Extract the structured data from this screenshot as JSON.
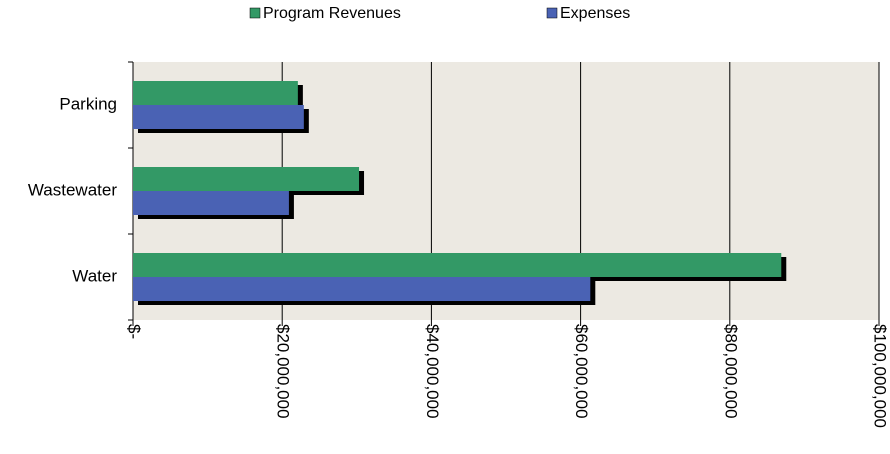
{
  "chart_data": {
    "type": "bar",
    "orientation": "horizontal",
    "categories": [
      "Water",
      "Wastewater",
      "Parking"
    ],
    "series": [
      {
        "name": "Program Revenues",
        "color": "#339966",
        "values": [
          86900000,
          30300000,
          22100000
        ]
      },
      {
        "name": "Expenses",
        "color": "#4a62b4",
        "values": [
          61300000,
          20900000,
          22900000
        ]
      }
    ],
    "xlim": [
      0,
      100000000
    ],
    "xticks": [
      {
        "value": 0,
        "label": "$-"
      },
      {
        "value": 20000000,
        "label": "$20,000,000"
      },
      {
        "value": 40000000,
        "label": "$40,000,000"
      },
      {
        "value": 60000000,
        "label": "$60,000,000"
      },
      {
        "value": 80000000,
        "label": "$80,000,000"
      },
      {
        "value": 100000000,
        "label": "$100,000,000"
      }
    ],
    "grid": true,
    "legend": "top"
  }
}
